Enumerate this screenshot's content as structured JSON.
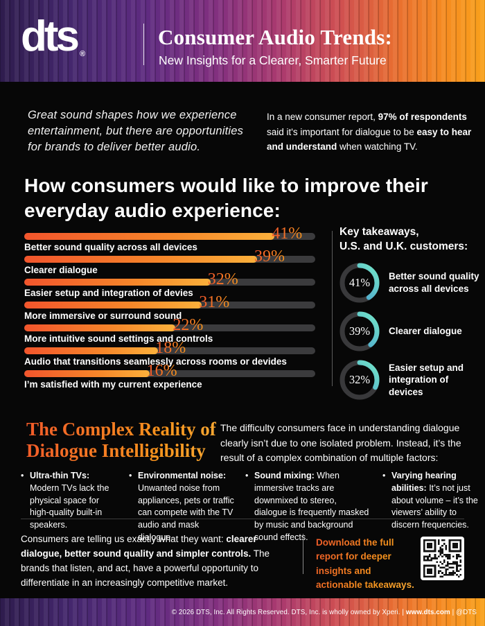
{
  "header": {
    "logo": "dts",
    "registered_mark": "®",
    "title": "Consumer Audio Trends:",
    "subtitle": "New Insights for a Clearer, Smarter Future"
  },
  "intro": {
    "quote": "Great sound shapes how we experience entertainment, but there are opportunities for brands to deliver better audio.",
    "note": {
      "p1": "In a new consumer report, ",
      "b1": "97% of respondents",
      "p2": " said it's important for dialogue to be ",
      "b2": "easy to hear and understand",
      "p3": " when watching TV."
    }
  },
  "main_heading": "How consumers would like to improve their everyday audio experience:",
  "chart_data": {
    "type": "bar",
    "orientation": "horizontal",
    "title": "How consumers would like to improve their everyday audio experience",
    "categories": [
      "Better sound quality across all devices",
      "Clearer dialogue",
      "Easier setup and integration of devies",
      "More immersive or surround sound",
      "More intuitive sound settings and controls",
      "Audio that transitions seamlessly across rooms or devides",
      "I’m satisfied with my current experience"
    ],
    "values": [
      41,
      39,
      32,
      31,
      22,
      18,
      16
    ],
    "value_labels": [
      "41%",
      "39%",
      "32%",
      "31%",
      "22%",
      "18%",
      "16%"
    ],
    "display_fill_percent": [
      86,
      80,
      64,
      61,
      52,
      46,
      43
    ],
    "xlim": [
      0,
      100
    ],
    "grid": false,
    "colors": {
      "fill_start": "#f2552c",
      "fill_end": "#fbb03b",
      "track": "#3b3b3d",
      "value_label": "#f47b20"
    }
  },
  "takeaways": {
    "heading_line1": "Key takeaways,",
    "heading_line2": "U.S. and U.K. customers:",
    "items": [
      {
        "value": 41,
        "value_label": "41%",
        "label": "Better sound quality across all devices"
      },
      {
        "value": 39,
        "value_label": "39%",
        "label": "Clearer dialogue"
      },
      {
        "value": 32,
        "value_label": "32%",
        "label": "Easier setup and integration of devices"
      }
    ],
    "arc_colors": {
      "start": "#3e8ed0",
      "end": "#74e6c8",
      "track": "#39393b"
    }
  },
  "complex_section": {
    "title_line1": "The Complex Reality of",
    "title_line2": "Dialogue Intelligibility",
    "intro": "The difficulty consumers face in understanding dialogue clearly isn’t due to one isolated problem. Instead, it’s the result of a complex combination of multiple factors:"
  },
  "factors": {
    "items": [
      {
        "bullet": "•",
        "lead": "Ultra-thin TVs:",
        "text": " Modern TVs lack the physical space for high-quality built-in speakers."
      },
      {
        "bullet": "•",
        "lead": "Environmental noise:",
        "text": " Unwanted noise from appliances, pets or traffic can compete with the TV audio and mask dialogue."
      },
      {
        "bullet": "•",
        "lead": "Sound mixing:",
        "text": " When immersive tracks are downmixed to stereo, dialogue is frequently masked by music and background sound effects."
      },
      {
        "bullet": "•",
        "lead": "Varying hearing abilities:",
        "text": " It’s not just about volume – it’s the viewers’ ability to discern frequencies."
      }
    ]
  },
  "cta": {
    "message": {
      "p1": "Consumers are telling us exactly what they want: ",
      "b1": "clearer dialogue, better sound quality and simpler controls.",
      "p2": " The brands that listen, and act, have a powerful opportunity to differentiate in an increasingly competitive market."
    },
    "download": "Download the full report for deeper insights and actionable takeaways."
  },
  "footer": {
    "p1": "© 2026 DTS, Inc. All Rights Reserved. DTS, Inc. is wholly owned by Xperi. | ",
    "b1": "www.dts.com",
    "p2": " | @DTS"
  },
  "colors": {
    "accent_orange": "#f7941d",
    "accent_red_orange": "#f2552c",
    "teal": "#74e6c8",
    "blue": "#3e8ed0",
    "background": "#070707"
  }
}
